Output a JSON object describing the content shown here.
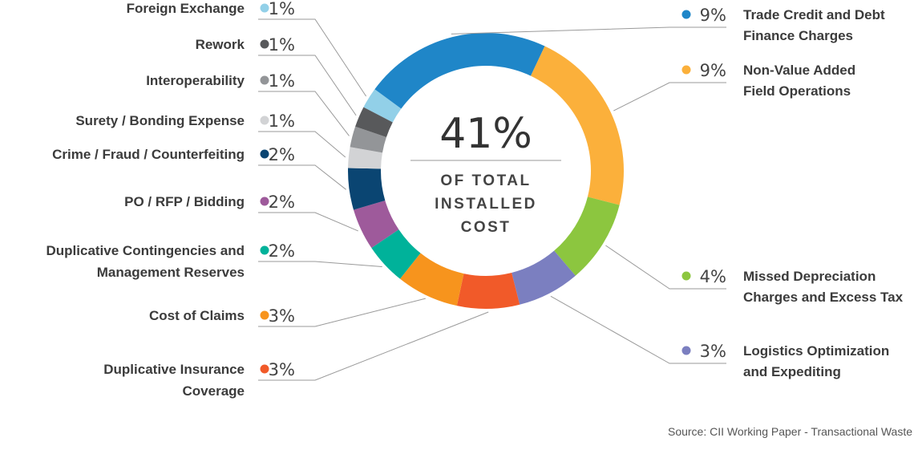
{
  "chart_data": {
    "type": "pie",
    "center": {
      "value": "41%",
      "lines": [
        "OF TOTAL",
        "INSTALLED",
        "COST"
      ]
    },
    "slices": [
      {
        "label": "Foreign Exchange",
        "pct": "1%",
        "value": 1,
        "color": "#92d0e8",
        "side": "left"
      },
      {
        "label": "Trade Credit and Debt Finance Charges",
        "pct": "9%",
        "value": 9,
        "color": "#1f86c8",
        "side": "right"
      },
      {
        "label": "Non-Value Added Field Operations",
        "pct": "9%",
        "value": 9,
        "color": "#fbb03b",
        "side": "right"
      },
      {
        "label": "Missed Depreciation Charges and Excess Tax",
        "pct": "4%",
        "value": 4,
        "color": "#8cc63f",
        "side": "right"
      },
      {
        "label": "Logistics Optimization and Expediting",
        "pct": "3%",
        "value": 3,
        "color": "#7b7fc0",
        "side": "right"
      },
      {
        "label": "Duplicative Insurance Coverage",
        "pct": "3%",
        "value": 3,
        "color": "#f15a29",
        "side": "left"
      },
      {
        "label": "Cost of Claims",
        "pct": "3%",
        "value": 3,
        "color": "#f7941d",
        "side": "left"
      },
      {
        "label": "Duplicative Contingencies and Management Reserves",
        "pct": "2%",
        "value": 2,
        "color": "#00b29a",
        "side": "left"
      },
      {
        "label": "PO / RFP / Bidding",
        "pct": "2%",
        "value": 2,
        "color": "#9e5a9b",
        "side": "left"
      },
      {
        "label": "Crime / Fraud / Counterfeiting",
        "pct": "2%",
        "value": 2,
        "color": "#0a4572",
        "side": "left"
      },
      {
        "label": "Surety / Bonding Expense",
        "pct": "1%",
        "value": 1,
        "color": "#d2d3d5",
        "side": "left"
      },
      {
        "label": "Interoperability",
        "pct": "1%",
        "value": 1,
        "color": "#939598",
        "side": "left"
      },
      {
        "label": "Rework",
        "pct": "1%",
        "value": 1,
        "color": "#58595b",
        "side": "left"
      }
    ],
    "legend_lines": {
      "Trade Credit and Debt Finance Charges": [
        "Trade Credit and Debt",
        "Finance Charges"
      ],
      "Non-Value Added Field Operations": [
        "Non-Value Added",
        "Field Operations"
      ],
      "Missed Depreciation Charges and Excess Tax": [
        "Missed Depreciation",
        "Charges and Excess Tax"
      ],
      "Logistics Optimization and Expediting": [
        "Logistics Optimization",
        "and Expediting"
      ],
      "Duplicative Insurance Coverage": [
        "Duplicative Insurance",
        "Coverage"
      ],
      "Duplicative Contingencies and Management Reserves": [
        "Duplicative Contingencies and",
        "Management Reserves"
      ]
    }
  },
  "source": "Source: CII Working Paper - Transactional Waste"
}
